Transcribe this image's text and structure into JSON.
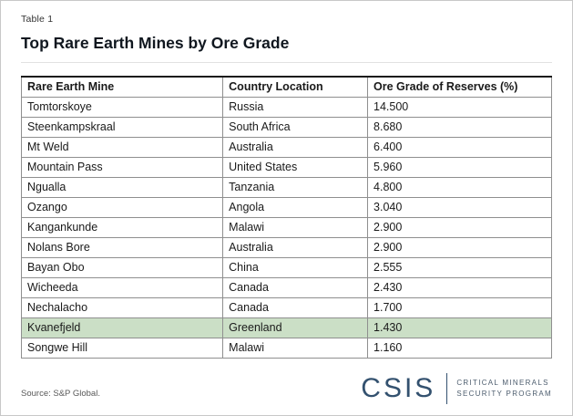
{
  "meta": {
    "table_label": "Table 1",
    "title": "Top Rare Earth Mines by Ore Grade",
    "source": "Source: S&P Global."
  },
  "logo": {
    "org": "CSIS",
    "program_line1": "CRITICAL MINERALS",
    "program_line2": "SECURITY PROGRAM"
  },
  "colors": {
    "navy": "#33516f",
    "highlight_green": "#cbdfc6",
    "table_border": "#8f8f8f",
    "header_top_border": "#1a1a1a"
  },
  "chart_data": {
    "type": "table",
    "title": "Top Rare Earth Mines by Ore Grade",
    "columns": [
      "Rare Earth Mine",
      "Country Location",
      "Ore Grade of Reserves (%)"
    ],
    "rows": [
      [
        "Tomtorskoye",
        "Russia",
        "14.500"
      ],
      [
        "Steenkampskraal",
        "South Africa",
        "8.680"
      ],
      [
        "Mt Weld",
        "Australia",
        "6.400"
      ],
      [
        "Mountain Pass",
        "United States",
        "5.960"
      ],
      [
        "Ngualla",
        "Tanzania",
        "4.800"
      ],
      [
        "Ozango",
        "Angola",
        "3.040"
      ],
      [
        "Kangankunde",
        "Malawi",
        "2.900"
      ],
      [
        "Nolans Bore",
        "Australia",
        "2.900"
      ],
      [
        "Bayan Obo",
        "China",
        "2.555"
      ],
      [
        "Wicheeda",
        "Canada",
        "2.430"
      ],
      [
        "Nechalacho",
        "Canada",
        "1.700"
      ],
      [
        "Kvanefjeld",
        "Greenland",
        "1.430"
      ],
      [
        "Songwe Hill",
        "Malawi",
        "1.160"
      ]
    ],
    "highlight_index": 11,
    "highlighted_row": "Kvanefjeld",
    "legend_position": "none",
    "grid": "all-cell-borders"
  }
}
